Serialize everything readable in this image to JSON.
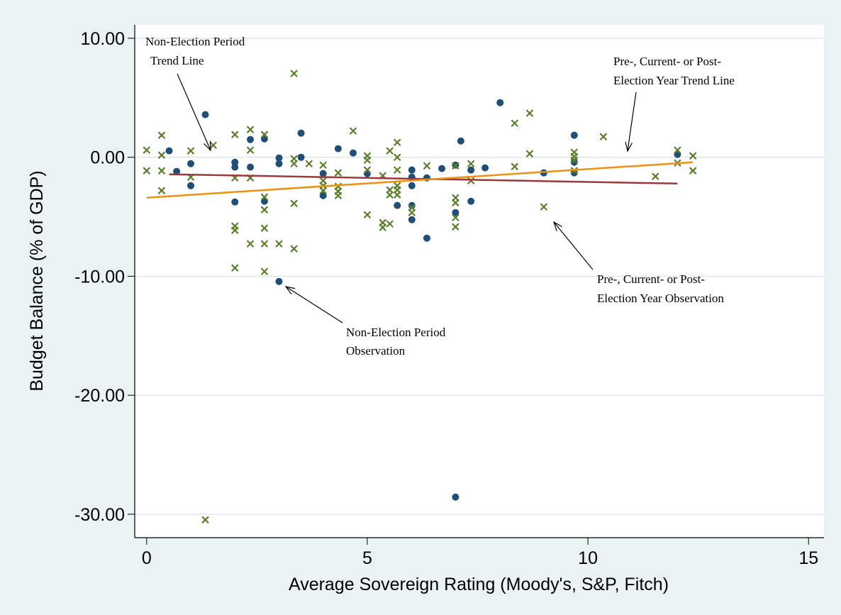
{
  "chart_data": {
    "type": "scatter",
    "xlabel": "Average Sovereign Rating (Moody's, S&P, Fitch)",
    "ylabel": "Budget Balance (% of GDP)",
    "xlim": [
      -0.27,
      15.35
    ],
    "ylim": [
      -31.97,
      11.13
    ],
    "xticks": [
      0,
      5,
      10,
      15
    ],
    "yticks": [
      {
        "value": 10,
        "label": "10.00"
      },
      {
        "value": 0,
        "label": "0.00"
      },
      {
        "value": -10,
        "label": "-10.00"
      },
      {
        "value": -20,
        "label": "-20.00"
      },
      {
        "value": -30,
        "label": "-30.00"
      }
    ],
    "grid": true,
    "series": [
      {
        "marker": "circle",
        "color": "#1f4e79",
        "x": [
          0.51,
          0.68,
          1.0,
          1.0,
          1.33,
          2.0,
          2.0,
          2.0,
          2.35,
          2.35,
          2.67,
          2.67,
          3.0,
          3.0,
          3.0,
          3.5,
          3.5,
          4.0,
          4.0,
          4.34,
          4.68,
          5.0,
          5.68,
          6.01,
          6.01,
          6.01,
          6.01,
          6.01,
          6.35,
          6.35,
          6.69,
          7.12,
          7.0,
          7.0,
          7.0,
          7.35,
          7.35,
          7.67,
          8.01,
          9.0,
          9.69,
          9.69,
          9.69,
          12.03
        ],
        "values": [
          0.54,
          -1.19,
          -0.54,
          -2.39,
          3.58,
          -0.42,
          -0.83,
          -3.76,
          1.49,
          -0.83,
          1.55,
          -3.7,
          -0.06,
          -0.54,
          -10.44,
          0,
          2.03,
          -1.37,
          -3.22,
          0.72,
          0.36,
          -1.37,
          -4.05,
          -1.07,
          -1.67,
          -2.39,
          -4.05,
          -5.25,
          -1.73,
          -6.8,
          -0.95,
          1.37,
          -0.66,
          -4.65,
          -28.56,
          -1.07,
          -3.7,
          -0.89,
          4.59,
          -1.31,
          1.85,
          -0.42,
          -1.31,
          0.24
        ]
      },
      {
        "marker": "x",
        "color": "#5b7e2b",
        "x": [
          0,
          0,
          0.34,
          0.34,
          0.34,
          0.34,
          1.0,
          1.0,
          1.33,
          1.51,
          2.0,
          2.0,
          2.0,
          2.0,
          2.0,
          2.35,
          2.35,
          2.35,
          2.35,
          2.67,
          2.67,
          2.67,
          2.67,
          2.67,
          2.67,
          3.0,
          3.34,
          3.34,
          3.34,
          3.34,
          3.34,
          3.68,
          4.0,
          4.0,
          4.0,
          4.0,
          4.34,
          4.34,
          4.34,
          4.34,
          4.68,
          5.0,
          5.0,
          5.0,
          5.0,
          5.35,
          5.35,
          5.35,
          5.51,
          5.51,
          5.51,
          5.51,
          5.68,
          5.68,
          5.68,
          5.68,
          5.68,
          5.68,
          6.01,
          6.01,
          6.35,
          7.0,
          7.0,
          7.0,
          7.0,
          7.0,
          7.35,
          7.35,
          8.34,
          8.34,
          8.68,
          8.68,
          9.0,
          9.69,
          9.69,
          9.69,
          9.69,
          10.35,
          11.53,
          12.03,
          12.03,
          12.38,
          12.38
        ],
        "values": [
          0.6,
          -1.13,
          1.85,
          0.18,
          -1.13,
          -2.8,
          0.54,
          -1.67,
          -30.47,
          1.01,
          1.91,
          -1.73,
          -5.78,
          -6.14,
          -9.3,
          2.33,
          0.6,
          -1.73,
          -7.27,
          1.91,
          -3.34,
          -4.41,
          -5.96,
          -7.27,
          -9.6,
          -7.27,
          7.04,
          -0.12,
          -0.54,
          -3.88,
          -7.69,
          -0.54,
          -0.66,
          -1.97,
          -2.39,
          -2.8,
          -1.31,
          -2.45,
          -2.86,
          -3.22,
          2.21,
          0.12,
          -0.24,
          -1.07,
          -4.83,
          -1.55,
          -5.49,
          -5.9,
          -5.6,
          0.54,
          -2.74,
          -3.16,
          1.25,
          0,
          -1.07,
          -2.39,
          -2.74,
          -3.16,
          -4.23,
          -4.65,
          -0.72,
          -0.72,
          -3.4,
          -3.82,
          -5.07,
          -5.84,
          -0.54,
          -1.97,
          2.86,
          -0.78,
          3.7,
          0.3,
          -4.17,
          0.42,
          0.06,
          -0.24,
          -1.13,
          1.73,
          -1.61,
          0.6,
          -0.48,
          0.12,
          -1.13
        ]
      }
    ],
    "trend_lines": [
      {
        "color": "#9b3a3a",
        "x": [
          0.51,
          12.03
        ],
        "values": [
          -1.43,
          -2.21
        ]
      },
      {
        "color": "#f0900f",
        "x": [
          0,
          12.38
        ],
        "values": [
          -3.4,
          -0.42
        ]
      }
    ],
    "annotations": [
      {
        "lines": [
          "Non-Election Period",
          "Trend Line"
        ]
      },
      {
        "lines": [
          "Pre-, Current- or Post-",
          "Election Year Trend Line"
        ]
      },
      {
        "lines": [
          "Pre-, Current- or Post-",
          "Election Year Observation"
        ]
      },
      {
        "lines": [
          "Non-Election Period",
          "Observation"
        ]
      }
    ]
  }
}
